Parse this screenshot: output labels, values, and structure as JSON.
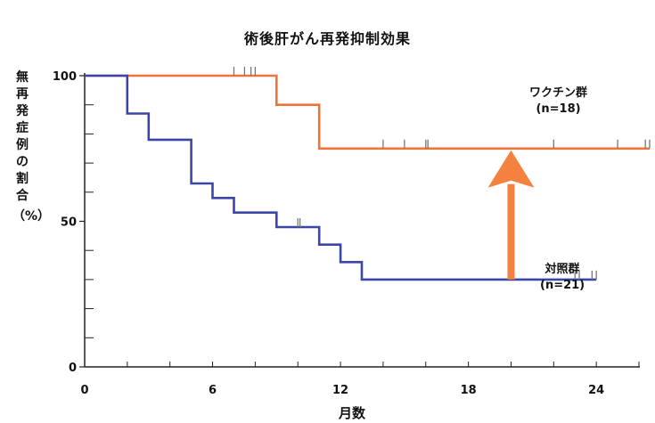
{
  "chart_data": {
    "type": "line",
    "title": "術後肝がん再発抑制効果",
    "xlabel": "月数",
    "ylabel": "無再発症例の割合",
    "ylabel_unit": "（%）",
    "xlim": [
      0,
      26
    ],
    "ylim": [
      0,
      100
    ],
    "xticks": [
      0,
      6,
      12,
      18,
      24
    ],
    "yticks": [
      0,
      50,
      100
    ],
    "grid": false,
    "series": [
      {
        "name": "ワクチン群",
        "n_label": "(n=18)",
        "color": "#f0743a",
        "steps": [
          [
            0,
            100
          ],
          [
            9,
            100
          ],
          [
            9,
            90
          ],
          [
            11,
            90
          ],
          [
            11,
            75
          ],
          [
            26.5,
            75
          ]
        ],
        "censor": [
          7,
          7.5,
          7.8,
          8,
          14,
          15,
          16,
          16.1,
          22,
          25,
          26.3,
          26.5
        ]
      },
      {
        "name": "対照群",
        "n_label": "(n=21)",
        "color": "#3c45a8",
        "steps": [
          [
            0,
            100
          ],
          [
            2,
            100
          ],
          [
            2,
            87
          ],
          [
            3,
            87
          ],
          [
            3,
            78
          ],
          [
            5,
            78
          ],
          [
            5,
            63
          ],
          [
            6,
            63
          ],
          [
            6,
            58
          ],
          [
            7,
            58
          ],
          [
            7,
            53
          ],
          [
            9,
            53
          ],
          [
            9,
            48
          ],
          [
            11,
            48
          ],
          [
            11,
            42
          ],
          [
            12,
            42
          ],
          [
            12,
            36
          ],
          [
            13,
            36
          ],
          [
            13,
            30
          ],
          [
            24,
            30
          ]
        ],
        "censor": [
          10,
          10.1,
          23,
          23.2,
          23.8,
          24
        ]
      }
    ],
    "annotation": {
      "type": "arrow",
      "x": 20,
      "from": 30,
      "to": 75,
      "color": "#f4823f"
    }
  }
}
